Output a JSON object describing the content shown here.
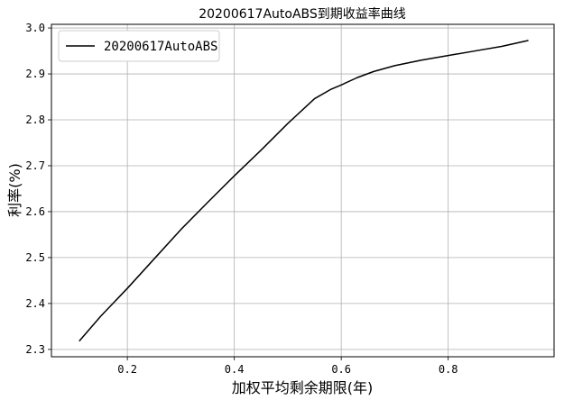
{
  "chart_data": {
    "type": "line",
    "title": "20200617AutoABS到期收益率曲线",
    "xlabel": "加权平均剩余期限(年)",
    "ylabel": "利率(%)",
    "xlim": [
      0.058,
      0.998
    ],
    "ylim": [
      2.284,
      3.008
    ],
    "xticks": [
      0.2,
      0.4,
      0.6,
      0.8
    ],
    "yticks": [
      2.3,
      2.4,
      2.5,
      2.6,
      2.7,
      2.8,
      2.9,
      3.0
    ],
    "grid": true,
    "legend_position": "top-left",
    "series": [
      {
        "name": "20200617AutoABS",
        "color": "#000000",
        "x": [
          0.11,
          0.15,
          0.2,
          0.25,
          0.3,
          0.35,
          0.4,
          0.45,
          0.5,
          0.55,
          0.58,
          0.6,
          0.63,
          0.66,
          0.7,
          0.75,
          0.8,
          0.85,
          0.9,
          0.95
        ],
        "y": [
          2.318,
          2.372,
          2.433,
          2.497,
          2.561,
          2.62,
          2.678,
          2.734,
          2.792,
          2.846,
          2.866,
          2.876,
          2.892,
          2.905,
          2.918,
          2.93,
          2.94,
          2.95,
          2.96,
          2.973
        ]
      }
    ]
  }
}
